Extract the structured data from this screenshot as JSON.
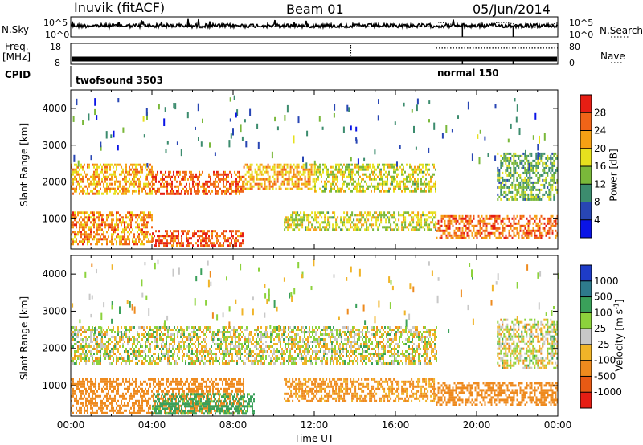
{
  "header": {
    "station": "Inuvik (fitACF)",
    "beam": "Beam 01",
    "date": "05/Jun/2014"
  },
  "top_panels": {
    "nsky_label": "N.Sky",
    "nsky_ticks": [
      "10^5",
      "10^0"
    ],
    "nsearch_label": "N.Search",
    "freq_label": "Freq.",
    "freq_unit": "[MHz]",
    "freq_ticks": [
      "18",
      "8"
    ],
    "nave_label": "Nave",
    "nave_ticks": [
      "80",
      "0"
    ],
    "cpid_label": "CPID",
    "cpid_segments": [
      {
        "label": "twofsound 3503",
        "start_hour": 0,
        "end_hour": 18
      },
      {
        "label": "normal 150",
        "start_hour": 18,
        "end_hour": 24
      }
    ],
    "freq_mhz": 10.5,
    "nave_before_18ut": 0,
    "nave_after_18ut": 62
  },
  "x_axis": {
    "label": "Time UT",
    "ticks": [
      "00:00",
      "04:00",
      "08:00",
      "12:00",
      "16:00",
      "20:00",
      "00:00"
    ],
    "range_hours": [
      0,
      24
    ]
  },
  "power_panel": {
    "ylabel": "Slant Range [km]",
    "yticks": [
      "1000",
      "2000",
      "3000",
      "4000"
    ],
    "colorbar_title": "Power [dB]",
    "colorbar_ticks": [
      "28",
      "24",
      "20",
      "16",
      "12",
      "8",
      "4"
    ],
    "colors": [
      "#0a14e6",
      "#2846b4",
      "#3c8c6e",
      "#7ab83a",
      "#e6e01e",
      "#f5a014",
      "#f06418",
      "#e61e14"
    ]
  },
  "velocity_panel": {
    "ylabel": "Slant Range [km]",
    "yticks": [
      "1000",
      "2000",
      "3000",
      "4000"
    ],
    "colorbar_title": "Velocity [m s",
    "colorbar_sup": "-1",
    "colorbar_title_end": "]",
    "colorbar_ticks": [
      "1000",
      "500",
      "100",
      "25",
      "-25",
      "-100",
      "-500",
      "-1000"
    ],
    "colors": [
      "#1e3cc8",
      "#2e7a8c",
      "#3aa05a",
      "#8cd23c",
      "#c8c8c8",
      "#f0b428",
      "#ee8a1e",
      "#e85a14",
      "#e61e14"
    ]
  },
  "chart_data": [
    {
      "type": "heatmap",
      "title": "Inuvik (fitACF) Beam 01 05/Jun/2014",
      "quantity": "Power [dB]",
      "xlabel": "Time UT",
      "ylabel": "Slant Range [km]",
      "xlim_hours": [
        0,
        24
      ],
      "ylim_km": [
        180,
        4500
      ],
      "color_scale": [
        0,
        30
      ],
      "scatter_bands": [
        {
          "start_hour": 0.0,
          "end_hour": 4.0,
          "range_km": [
            1700,
            2500
          ],
          "value_db": 20
        },
        {
          "start_hour": 4.0,
          "end_hour": 8.5,
          "range_km": [
            1700,
            2300
          ],
          "value_db": 24
        },
        {
          "start_hour": 8.5,
          "end_hour": 12.0,
          "range_km": [
            1800,
            2500
          ],
          "value_db": 20
        },
        {
          "start_hour": 12.0,
          "end_hour": 18.0,
          "range_km": [
            1750,
            2500
          ],
          "value_db": 16
        },
        {
          "start_hour": 0.0,
          "end_hour": 4.0,
          "range_km": [
            300,
            1200
          ],
          "value_db": 22
        },
        {
          "start_hour": 4.0,
          "end_hour": 8.5,
          "range_km": [
            250,
            700
          ],
          "value_db": 26
        },
        {
          "start_hour": 10.5,
          "end_hour": 18.0,
          "range_km": [
            700,
            1200
          ],
          "value_db": 16
        },
        {
          "start_hour": 18.0,
          "end_hour": 24.0,
          "range_km": [
            500,
            1100
          ],
          "value_db": 24
        },
        {
          "start_hour": 21.0,
          "end_hour": 24.0,
          "range_km": [
            1500,
            2800
          ],
          "value_db": 12
        }
      ]
    },
    {
      "type": "heatmap",
      "title": "Inuvik (fitACF) Beam 01 05/Jun/2014",
      "quantity": "Velocity [m s-1]",
      "xlabel": "Time UT",
      "ylabel": "Slant Range [km]",
      "xlim_hours": [
        0,
        24
      ],
      "ylim_km": [
        180,
        4500
      ],
      "color_scale": [
        -1000,
        1000
      ],
      "scatter_bands": [
        {
          "start_hour": 0.0,
          "end_hour": 18.0,
          "range_km": [
            1600,
            2600
          ],
          "value_ms": 0
        },
        {
          "start_hour": 21.0,
          "end_hour": 24.0,
          "range_km": [
            1500,
            2800
          ],
          "value_ms": 0
        },
        {
          "start_hour": 0.0,
          "end_hour": 8.5,
          "range_km": [
            250,
            1200
          ],
          "value_ms": -300
        },
        {
          "start_hour": 4.0,
          "end_hour": 9.0,
          "range_km": [
            250,
            800
          ],
          "value_ms": 200
        },
        {
          "start_hour": 10.5,
          "end_hour": 18.0,
          "range_km": [
            600,
            1200
          ],
          "value_ms": -150
        },
        {
          "start_hour": 18.0,
          "end_hour": 24.0,
          "range_km": [
            500,
            1100
          ],
          "value_ms": -300
        }
      ]
    }
  ]
}
